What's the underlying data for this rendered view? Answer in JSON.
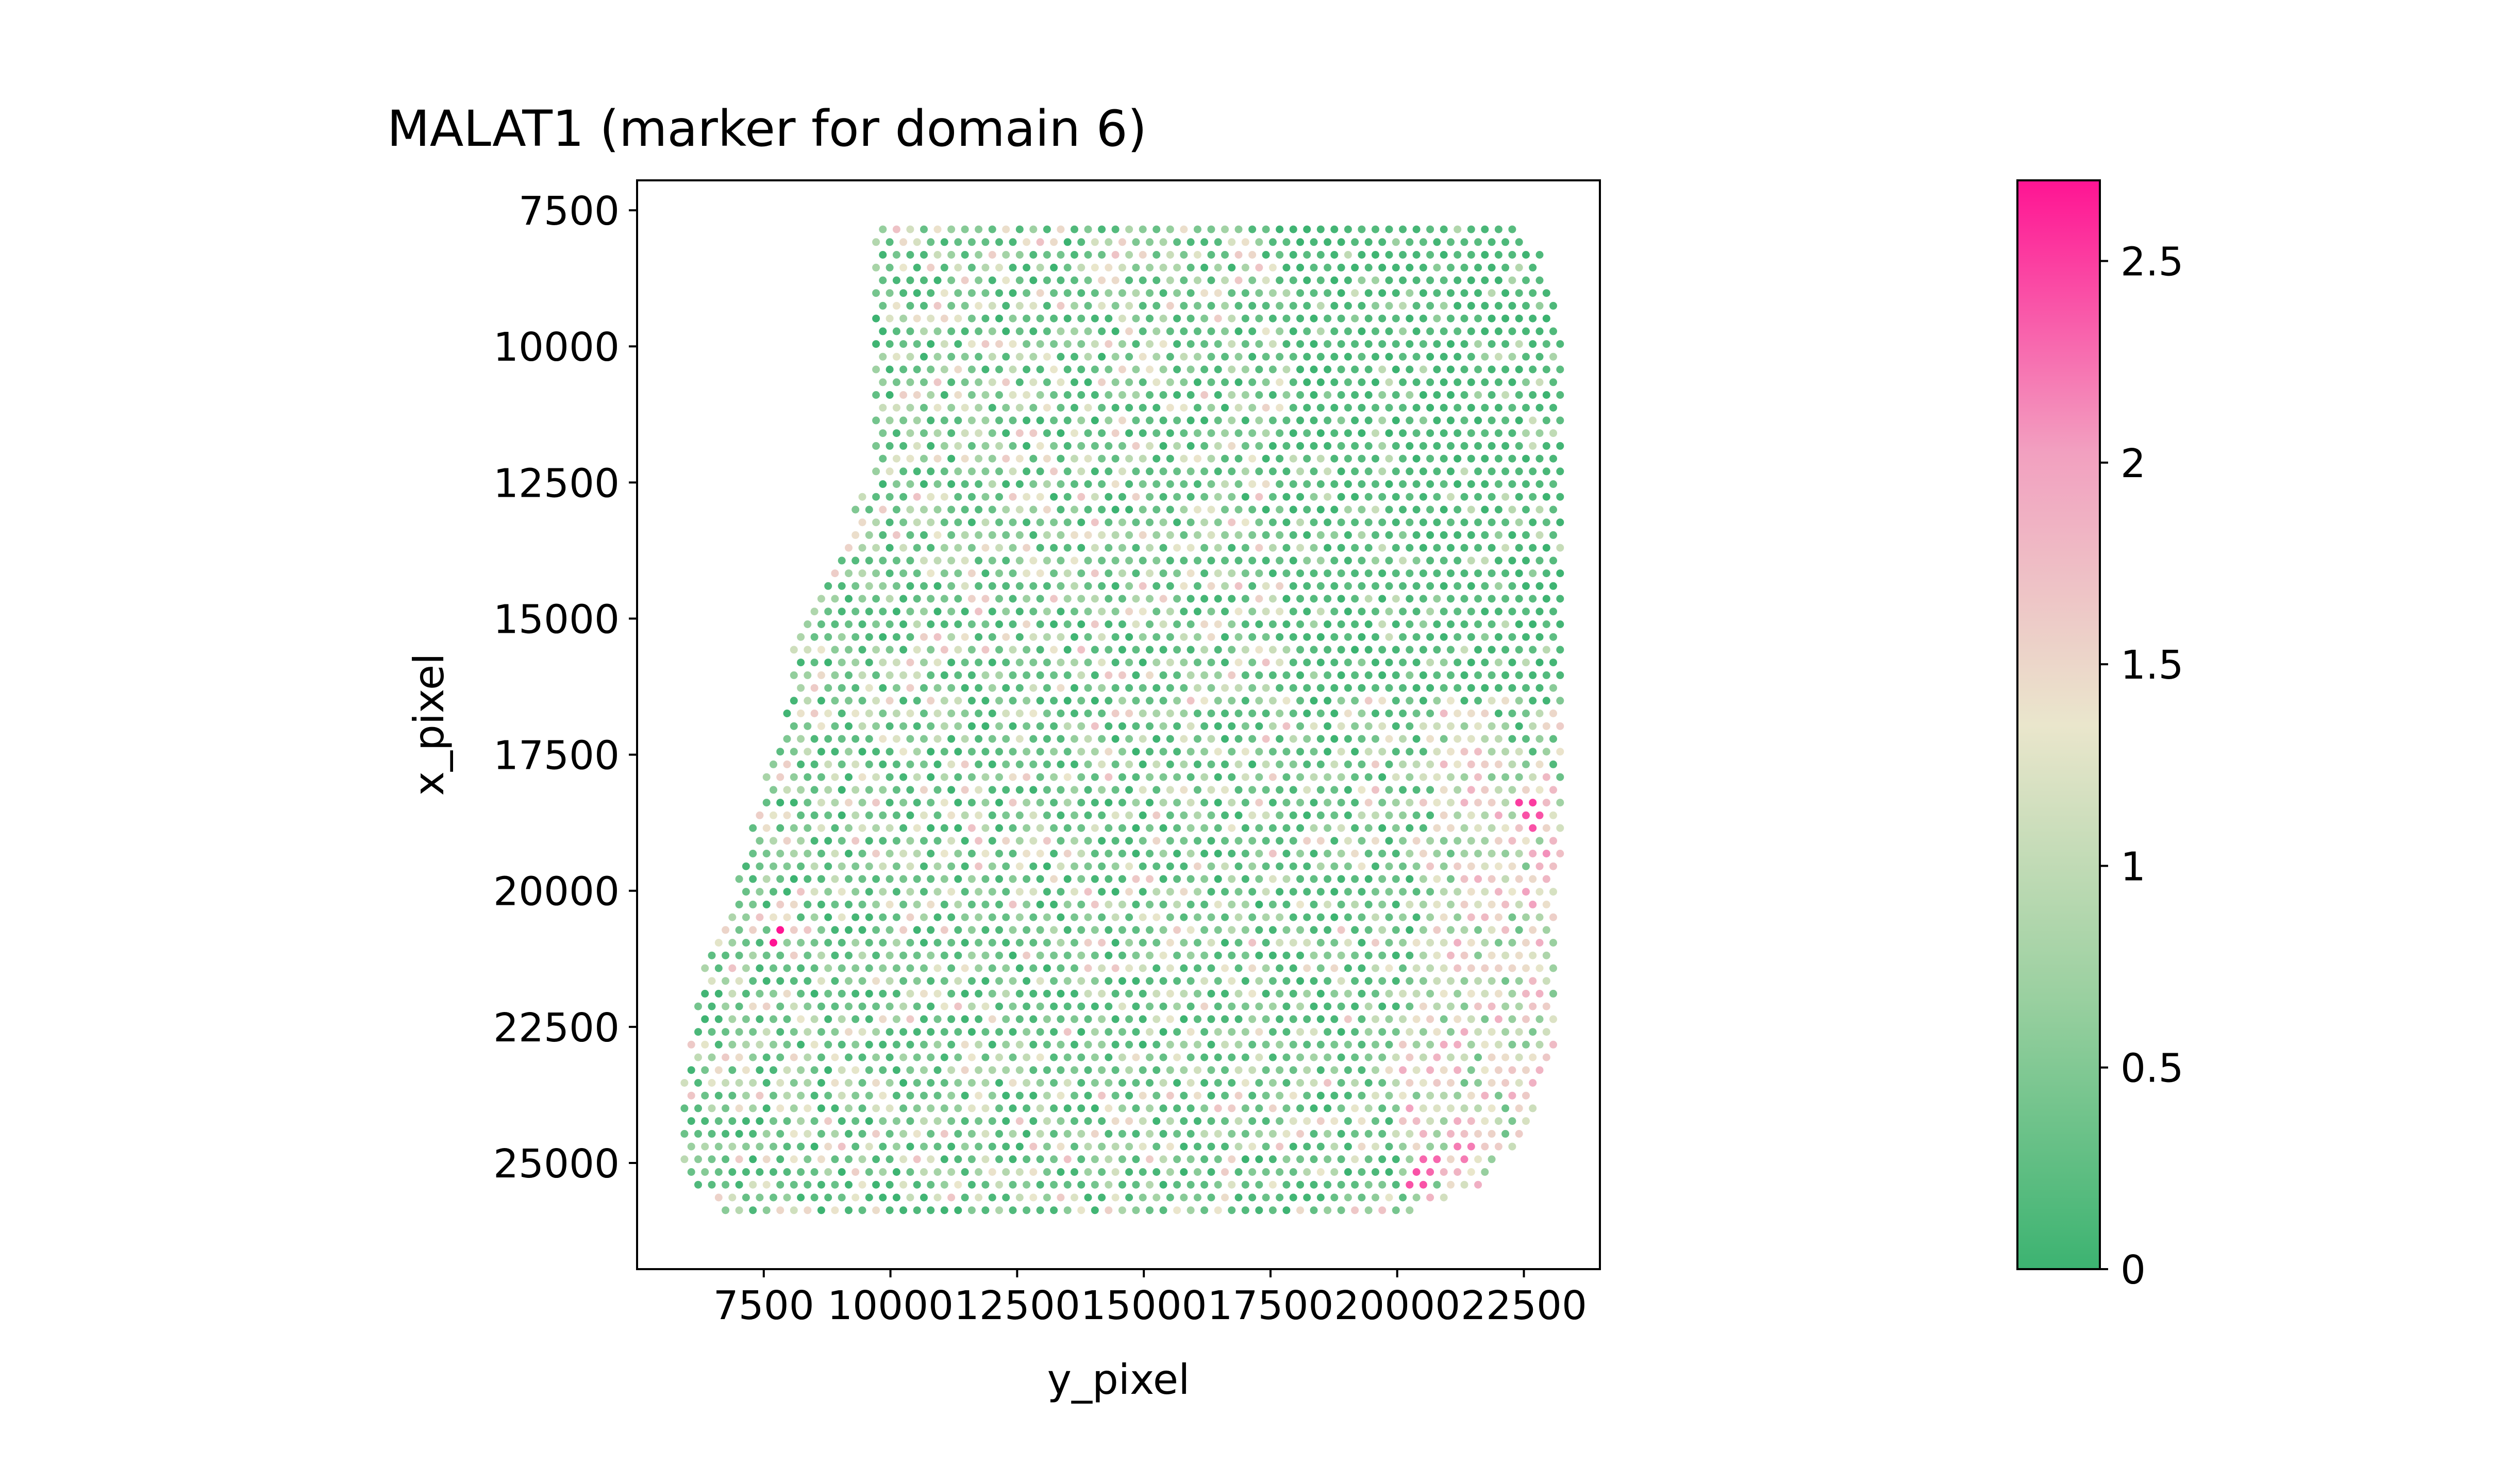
{
  "chart_data": {
    "type": "scatter",
    "title": "MALAT1 (marker for domain 6)",
    "xlabel": "y_pixel",
    "ylabel": "x_pixel",
    "xlim": [
      5000,
      24000
    ],
    "ylim": [
      26950,
      6950
    ],
    "y_inverted": true,
    "xticks": [
      7500,
      10000,
      12500,
      15000,
      17500,
      20000,
      22500
    ],
    "xtick_labels": [
      "7500",
      "10000",
      "12500",
      "15000",
      "17500",
      "20000",
      "22500"
    ],
    "yticks": [
      7500,
      10000,
      12500,
      15000,
      17500,
      20000,
      22500,
      25000
    ],
    "ytick_labels": [
      "7500",
      "10000",
      "12500",
      "15000",
      "17500",
      "20000",
      "22500",
      "25000"
    ],
    "grid": false,
    "legend": "none",
    "colorbar": {
      "range": [
        0,
        2.7
      ],
      "ticks": [
        0,
        0.5,
        1,
        1.5,
        2,
        2.5
      ],
      "tick_labels": [
        "0",
        "0.5",
        "1",
        "1.5",
        "2",
        "2.5"
      ],
      "colors": [
        "#3cb371",
        "#9ad0a0",
        "#eae6cc",
        "#f2a0c0",
        "#ff1493"
      ]
    },
    "spot_grid": {
      "x_start": 5800,
      "x_end": 23400,
      "x_step": 270,
      "y_start": 7850,
      "y_end": 26050,
      "y_step": 234,
      "row_offset": 135
    },
    "tissue_boundary": {
      "x": [
        9600,
        22300,
        22800,
        23200,
        23250,
        23200,
        22500,
        21800,
        21000,
        20200,
        7000,
        6300,
        5900,
        5900,
        6200,
        6800,
        7500,
        7900,
        8100,
        8700,
        9300,
        9600,
        9600
      ],
      "y": [
        7850,
        7850,
        8300,
        9000,
        12000,
        22500,
        24500,
        25300,
        25700,
        25900,
        26050,
        25600,
        25000,
        23500,
        21700,
        20300,
        18000,
        17000,
        15200,
        14200,
        13000,
        12500,
        7850
      ]
    },
    "domain6_region": {
      "x": [
        20500,
        21400,
        22400,
        23250,
        23250,
        22500,
        21800,
        21000,
        20200,
        19800,
        20400,
        20800,
        20500
      ],
      "y": [
        16900,
        16500,
        17400,
        17800,
        22500,
        24500,
        25300,
        25700,
        25900,
        24000,
        22000,
        19000,
        16900
      ]
    },
    "hotspots": [
      {
        "x": 7800,
        "y": 20800,
        "value": 2.7
      },
      {
        "x": 20400,
        "y": 25300,
        "value": 2.4
      },
      {
        "x": 20600,
        "y": 25000,
        "value": 2.3
      },
      {
        "x": 21300,
        "y": 24800,
        "value": 2.2
      },
      {
        "x": 22500,
        "y": 18400,
        "value": 2.5
      },
      {
        "x": 22700,
        "y": 18700,
        "value": 2.4
      },
      {
        "x": 22600,
        "y": 20100,
        "value": 2.0
      },
      {
        "x": 22900,
        "y": 19300,
        "value": 2.1
      },
      {
        "x": 20300,
        "y": 24000,
        "value": 2.0
      },
      {
        "x": 21000,
        "y": 22800,
        "value": 1.9
      }
    ]
  },
  "colors": {
    "spot_low": "#3cb371",
    "spot_high": "#ff1493",
    "axes": "#000000",
    "background": "#ffffff"
  }
}
